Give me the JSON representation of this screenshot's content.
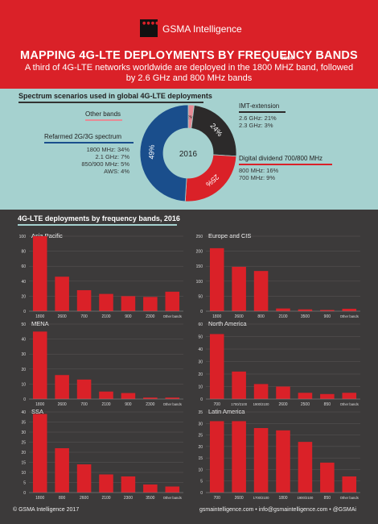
{
  "header": {
    "logo_text": "GSMA",
    "brand": "GSMA Intelligence",
    "title": "MAPPING 4G-LTE DEPLOYMENTS BY FREQUENCY BANDS",
    "subtitle": "A third of 4G-LTE networks worldwide are deployed in the 1800 MHZ band, followed by 2.6 GHz and 800 MHz bands"
  },
  "spectrum": {
    "title": "Spectrum scenarios used in global 4G-LTE deployments",
    "center_label": "2016",
    "groups": {
      "other": {
        "label": "Other bands"
      },
      "refarmed": {
        "label": "Refarmed 2G/3G spectrum",
        "items": [
          "1800 MHz: 34%",
          "2.1 GHz: 7%",
          "850/900 MHz: 5%",
          "AWS: 4%"
        ]
      },
      "imt": {
        "label": "IMT-extension",
        "items": [
          "2.6 GHz: 21%",
          "2.3 GHz: 3%"
        ]
      },
      "digital": {
        "label": "Digital dividend 700/800 MHz",
        "items": [
          "800 MHz: 16%",
          "700 MHz: 9%"
        ]
      }
    }
  },
  "chart_data": [
    {
      "type": "pie",
      "title": "Spectrum scenarios used in global 4G-LTE deployments",
      "center_label": "2016",
      "series": [
        {
          "name": "Other bands",
          "value": 2,
          "label": "2%",
          "color": "#e68a95"
        },
        {
          "name": "IMT-extension",
          "value": 24,
          "label": "24%",
          "color": "#2c2a2a"
        },
        {
          "name": "Digital dividend 700/800 MHz",
          "value": 25,
          "label": "25%",
          "color": "#da2128"
        },
        {
          "name": "Refarmed 2G/3G spectrum",
          "value": 49,
          "label": "49%",
          "color": "#1a4e8c"
        }
      ]
    },
    {
      "type": "bar",
      "title": "Asia Pacific",
      "categories": [
        "1800",
        "2600",
        "700",
        "2100",
        "900",
        "2300",
        "Other bands"
      ],
      "values": [
        100,
        46,
        28,
        23,
        20,
        19,
        26
      ],
      "ylim": [
        0,
        100
      ],
      "yticks": [
        0,
        20,
        40,
        60,
        80,
        100
      ]
    },
    {
      "type": "bar",
      "title": "Europe and CIS",
      "categories": [
        "1800",
        "2600",
        "800",
        "2100",
        "3500",
        "900",
        "Other bands"
      ],
      "values": [
        210,
        148,
        134,
        9,
        6,
        4,
        8
      ],
      "ylim": [
        0,
        250
      ],
      "yticks": [
        0,
        50,
        100,
        150,
        200,
        250
      ]
    },
    {
      "type": "bar",
      "title": "MENA",
      "categories": [
        "1800",
        "2600",
        "700",
        "2100",
        "900",
        "2300",
        "Other bands"
      ],
      "values": [
        45,
        16,
        13,
        5,
        4,
        1,
        1
      ],
      "ylim": [
        0,
        50
      ],
      "yticks": [
        0,
        10,
        20,
        30,
        40,
        50
      ]
    },
    {
      "type": "bar",
      "title": "North America",
      "categories": [
        "700",
        "1700/2100",
        "1900/2100",
        "2600",
        "2500",
        "850",
        "Other bands"
      ],
      "values": [
        52,
        22,
        12,
        10,
        5,
        4,
        5
      ],
      "ylim": [
        0,
        60
      ],
      "yticks": [
        0,
        10,
        20,
        30,
        40,
        50,
        60
      ]
    },
    {
      "type": "bar",
      "title": "SSA",
      "categories": [
        "1800",
        "800",
        "2600",
        "2100",
        "2300",
        "3500",
        "Other bands"
      ],
      "values": [
        39,
        22,
        14,
        9,
        8,
        4,
        3
      ],
      "ylim": [
        0,
        40
      ],
      "yticks": [
        0,
        5,
        10,
        15,
        20,
        25,
        30,
        35,
        40
      ]
    },
    {
      "type": "bar",
      "title": "Latin America",
      "categories": [
        "700",
        "2600",
        "1700/2100",
        "1800",
        "1900/2100",
        "850",
        "Other bands"
      ],
      "values": [
        31,
        31,
        28,
        27,
        22,
        13,
        7
      ],
      "ylim": [
        0,
        35
      ],
      "yticks": [
        0,
        5,
        10,
        15,
        20,
        25,
        30,
        35
      ]
    }
  ],
  "charts_section": {
    "title": "4G-LTE deployments by frequency bands, 2016"
  },
  "colors": {
    "red": "#da2128",
    "dark": "#3c3a3a",
    "teal": "#a5d1cf",
    "blue": "#1a4e8c"
  },
  "footer": {
    "left": "© GSMA Intelligence 2017",
    "right": "gsmaintelligence.com • info@gsmaintelligence.com • @GSMAi"
  }
}
